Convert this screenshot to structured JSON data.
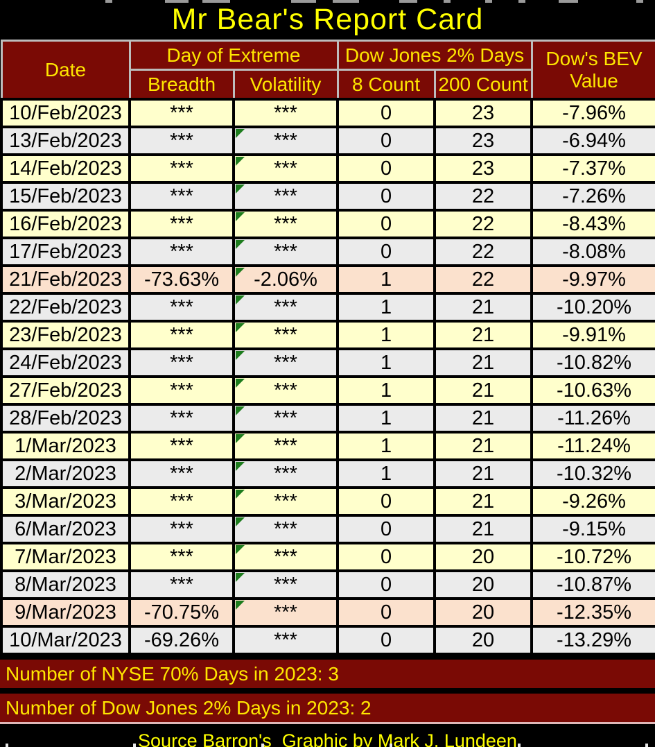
{
  "title": "Mr Bear's Report Card",
  "header": {
    "date": "Date",
    "day_of_extreme": "Day of Extreme",
    "breadth": "Breadth",
    "volatility": "Volatility",
    "dow_jones_2pct": "Dow Jones 2% Days",
    "count8": "8 Count",
    "count200": "200 Count",
    "bev_line1": "Dow's BEV",
    "bev_line2": "Value"
  },
  "chart_data": {
    "type": "table",
    "title": "Mr Bear's Report Card",
    "columns": [
      "Date",
      "Breadth",
      "Volatility",
      "8 Count",
      "200 Count",
      "Dow's BEV Value"
    ],
    "column_groups": [
      "Day of Extreme (Breadth, Volatility)",
      "Dow Jones 2% Days (8 Count, 200 Count)"
    ],
    "rows": [
      {
        "date": "10/Feb/2023",
        "breadth": "***",
        "volatility": "***",
        "count8": "0",
        "count200": "23",
        "bev": "-7.96%",
        "bg": "yellow",
        "flag": false
      },
      {
        "date": "13/Feb/2023",
        "breadth": "***",
        "volatility": "***",
        "count8": "0",
        "count200": "23",
        "bev": "-6.94%",
        "bg": "gray",
        "flag": true
      },
      {
        "date": "14/Feb/2023",
        "breadth": "***",
        "volatility": "***",
        "count8": "0",
        "count200": "23",
        "bev": "-7.37%",
        "bg": "yellow",
        "flag": true
      },
      {
        "date": "15/Feb/2023",
        "breadth": "***",
        "volatility": "***",
        "count8": "0",
        "count200": "22",
        "bev": "-7.26%",
        "bg": "gray",
        "flag": true
      },
      {
        "date": "16/Feb/2023",
        "breadth": "***",
        "volatility": "***",
        "count8": "0",
        "count200": "22",
        "bev": "-8.43%",
        "bg": "yellow",
        "flag": true
      },
      {
        "date": "17/Feb/2023",
        "breadth": "***",
        "volatility": "***",
        "count8": "0",
        "count200": "22",
        "bev": "-8.08%",
        "bg": "gray",
        "flag": true
      },
      {
        "date": "21/Feb/2023",
        "breadth": "-73.63%",
        "volatility": "-2.06%",
        "count8": "1",
        "count200": "22",
        "bev": "-9.97%",
        "bg": "orange",
        "flag": true
      },
      {
        "date": "22/Feb/2023",
        "breadth": "***",
        "volatility": "***",
        "count8": "1",
        "count200": "21",
        "bev": "-10.20%",
        "bg": "gray",
        "flag": true
      },
      {
        "date": "23/Feb/2023",
        "breadth": "***",
        "volatility": "***",
        "count8": "1",
        "count200": "21",
        "bev": "-9.91%",
        "bg": "yellow",
        "flag": true
      },
      {
        "date": "24/Feb/2023",
        "breadth": "***",
        "volatility": "***",
        "count8": "1",
        "count200": "21",
        "bev": "-10.82%",
        "bg": "gray",
        "flag": true
      },
      {
        "date": "27/Feb/2023",
        "breadth": "***",
        "volatility": "***",
        "count8": "1",
        "count200": "21",
        "bev": "-10.63%",
        "bg": "yellow",
        "flag": true
      },
      {
        "date": "28/Feb/2023",
        "breadth": "***",
        "volatility": "***",
        "count8": "1",
        "count200": "21",
        "bev": "-11.26%",
        "bg": "gray",
        "flag": true
      },
      {
        "date": "1/Mar/2023",
        "breadth": "***",
        "volatility": "***",
        "count8": "1",
        "count200": "21",
        "bev": "-11.24%",
        "bg": "yellow",
        "flag": true
      },
      {
        "date": "2/Mar/2023",
        "breadth": "***",
        "volatility": "***",
        "count8": "1",
        "count200": "21",
        "bev": "-10.32%",
        "bg": "gray",
        "flag": true
      },
      {
        "date": "3/Mar/2023",
        "breadth": "***",
        "volatility": "***",
        "count8": "0",
        "count200": "21",
        "bev": "-9.26%",
        "bg": "yellow",
        "flag": true
      },
      {
        "date": "6/Mar/2023",
        "breadth": "***",
        "volatility": "***",
        "count8": "0",
        "count200": "21",
        "bev": "-9.15%",
        "bg": "gray",
        "flag": true
      },
      {
        "date": "7/Mar/2023",
        "breadth": "***",
        "volatility": "***",
        "count8": "0",
        "count200": "20",
        "bev": "-10.72%",
        "bg": "yellow",
        "flag": true
      },
      {
        "date": "8/Mar/2023",
        "breadth": "***",
        "volatility": "***",
        "count8": "0",
        "count200": "20",
        "bev": "-10.87%",
        "bg": "gray",
        "flag": true
      },
      {
        "date": "9/Mar/2023",
        "breadth": "-70.75%",
        "volatility": "***",
        "count8": "0",
        "count200": "20",
        "bev": "-12.35%",
        "bg": "orange",
        "flag": true
      },
      {
        "date": "10/Mar/2023",
        "breadth": "-69.26%",
        "volatility": "***",
        "count8": "0",
        "count200": "20",
        "bev": "-13.29%",
        "bg": "gray",
        "flag": false
      }
    ]
  },
  "footer": {
    "nyse_note": "Number of NYSE 70% Days in 2023: 3",
    "dow_note": "Number of Dow Jones 2% Days in 2023: 2",
    "source": "Source Barron's  Graphic by Mark J. Lundeen"
  },
  "colors": {
    "background": "#000000",
    "title_text": "#ffff00",
    "header_bg": "#7a0a05",
    "header_text": "#ffe600",
    "row_yellow": "#ffffcc",
    "row_gray": "#ebebeb",
    "row_highlight_orange": "#fbe1cd",
    "cell_text": "#000000",
    "header_border": "#bdbdbd",
    "grid_border": "#000000",
    "comment_triangle_green": "#1d7c1d"
  }
}
